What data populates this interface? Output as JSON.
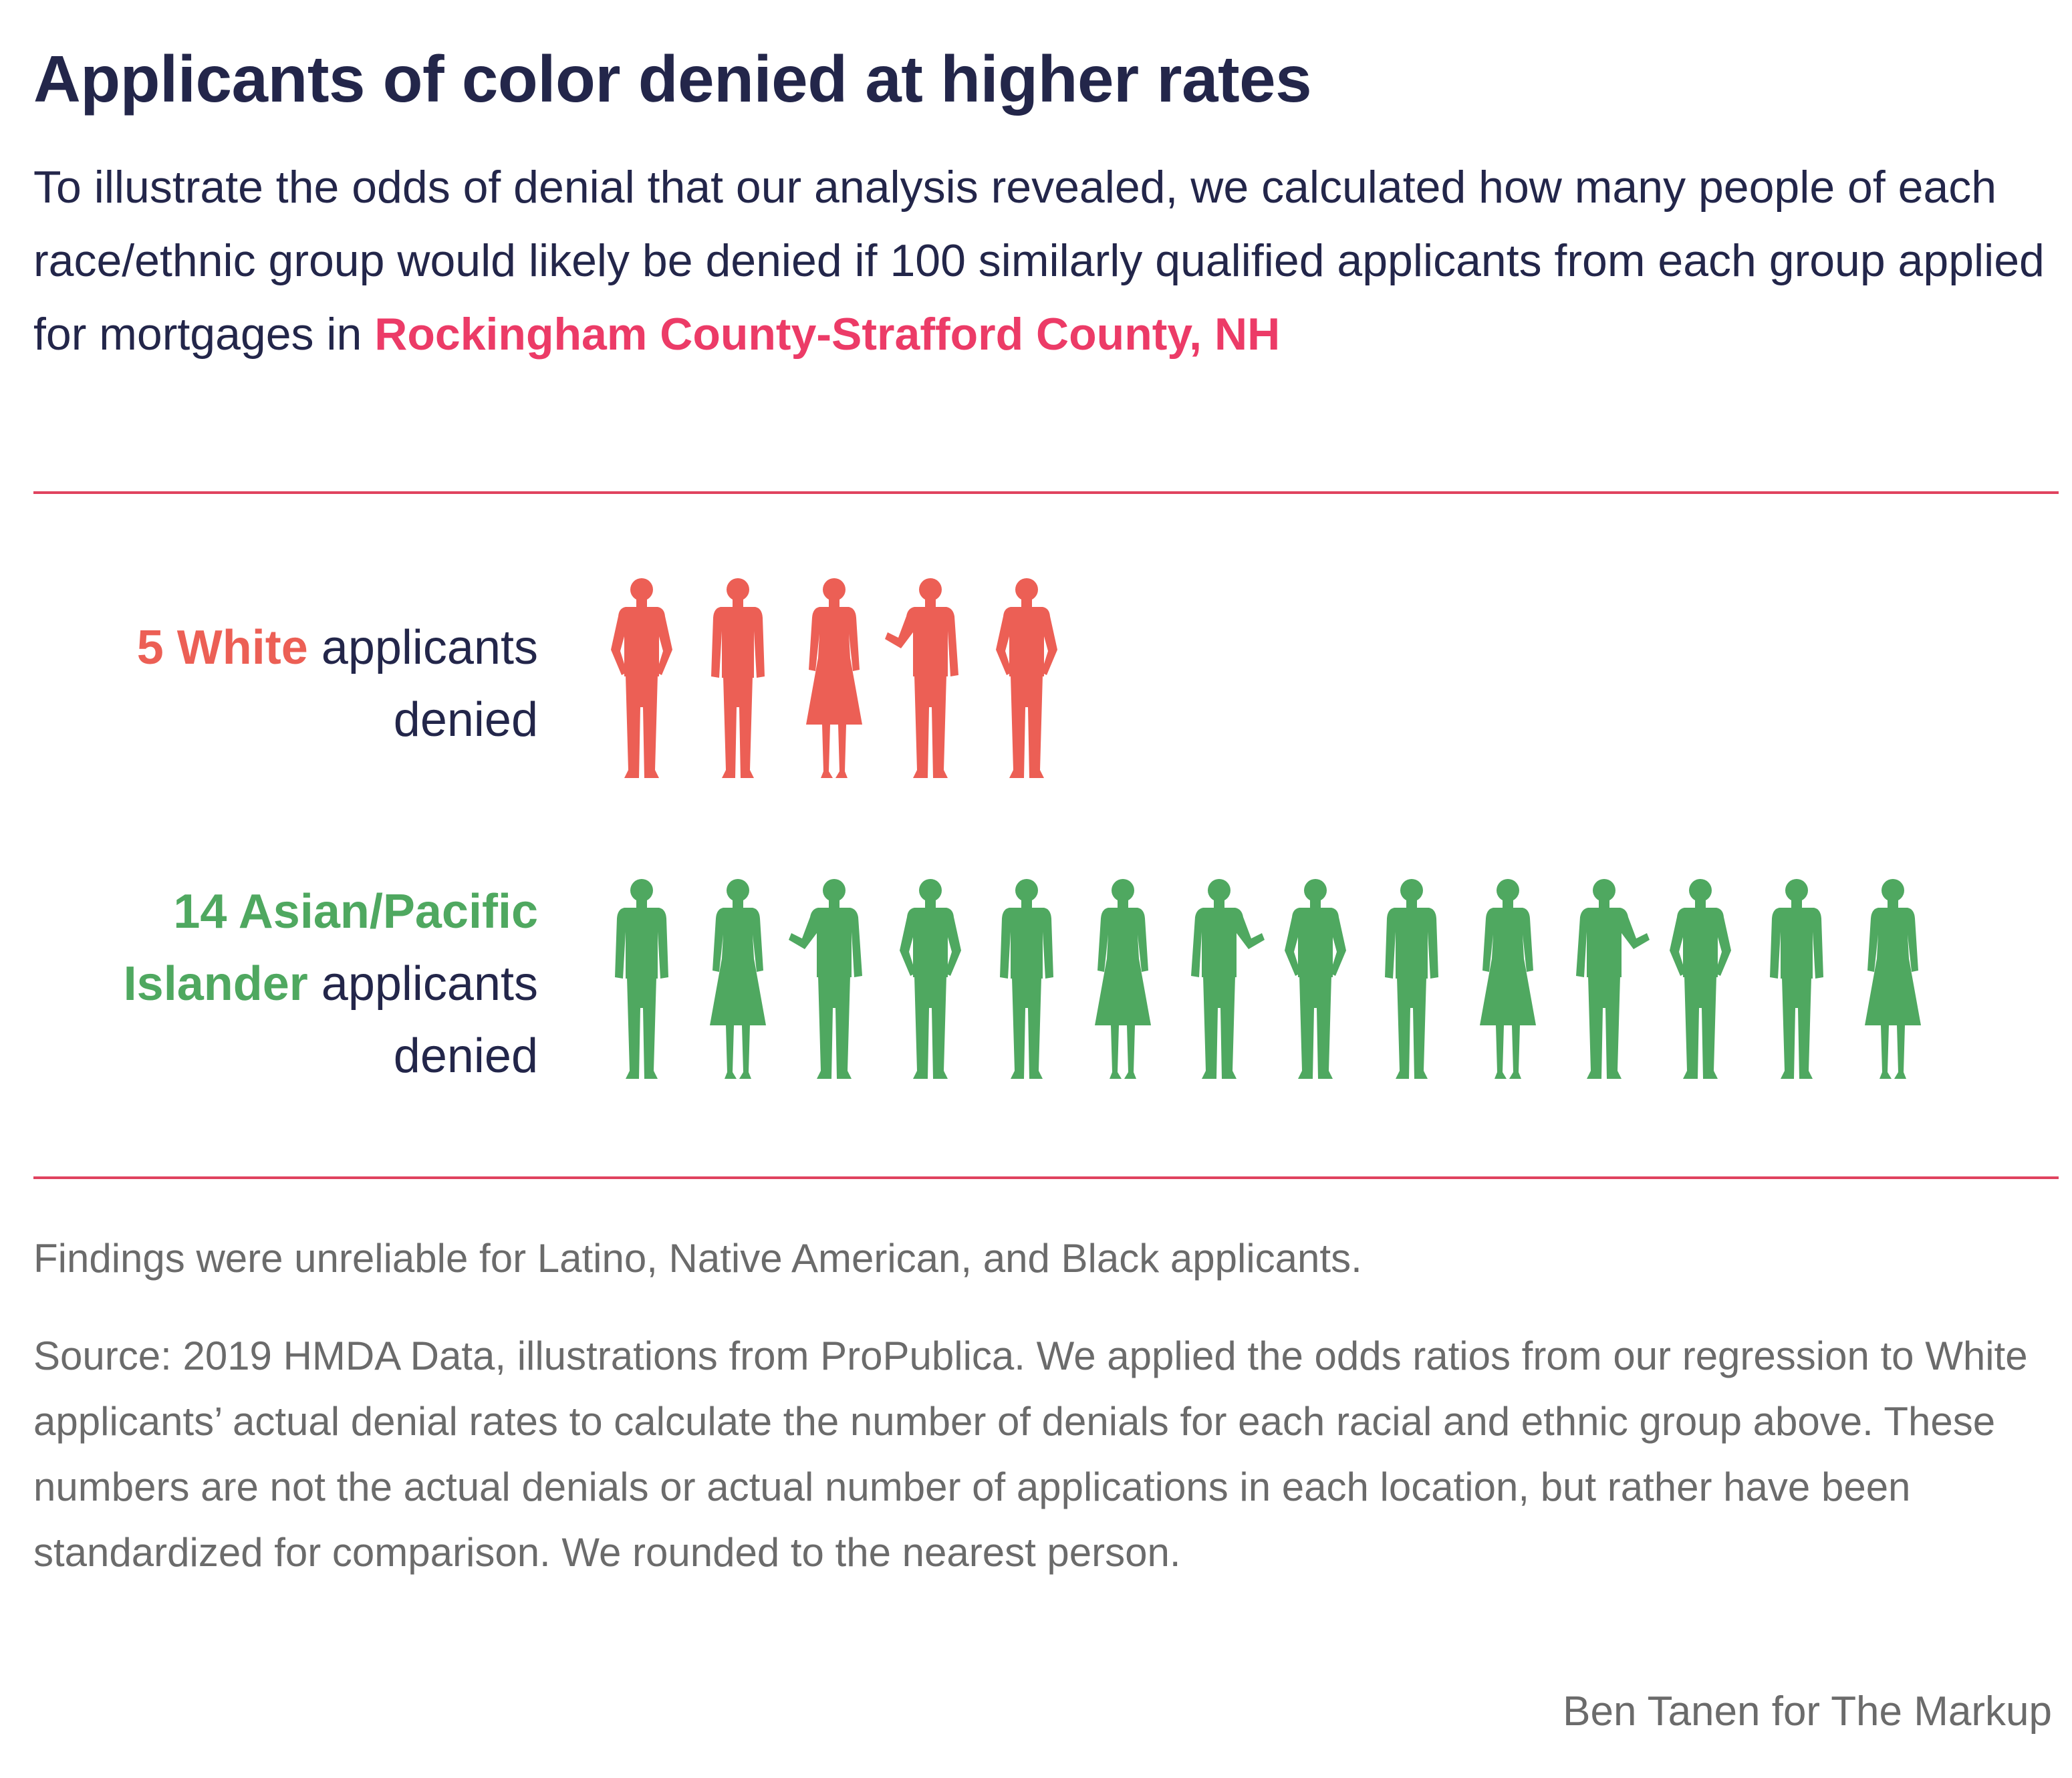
{
  "header": {
    "title": "Applicants of color denied at higher rates",
    "intro": "To illustrate the odds of denial that our analysis revealed, we calculated how many people of each race/ethnic group would likely be denied if 100 similarly qualified applicants from each group applied for mortgages in",
    "location": "Rockingham County-Strafford County, NH"
  },
  "chart_data": {
    "type": "pictogram",
    "unit_label": "applicants denied",
    "groups": [
      {
        "name": "White",
        "count": 5,
        "count_text": "5",
        "color": "#ec5f55",
        "label_suffix": "applicants",
        "label_line2": "denied"
      },
      {
        "name": "Asian/Pacific Islander",
        "count": 14,
        "count_text": "14",
        "name_part1": "Asian/Pacific",
        "name_part2": "Islander",
        "color": "#4fa860",
        "label_suffix": "applicants",
        "label_line2": "denied"
      }
    ]
  },
  "footer": {
    "note": "Findings were unreliable for Latino, Native American, and Black applicants.",
    "source": "Source: 2019 HMDA Data, illustrations from ProPublica. We applied the odds ratios from our regression to White applicants’ actual denial rates to calculate the number of denials for each racial and ethnic group above. These numbers are not the actual denials or actual number of applications in each location, but rather have been standardized for comparison. We rounded to the nearest person.",
    "credit": "Ben Tanen for The Markup"
  },
  "colors": {
    "navy": "#23264a",
    "accent": "#ec3b67",
    "rule": "#e0435f",
    "muted": "#6b6b6b"
  }
}
